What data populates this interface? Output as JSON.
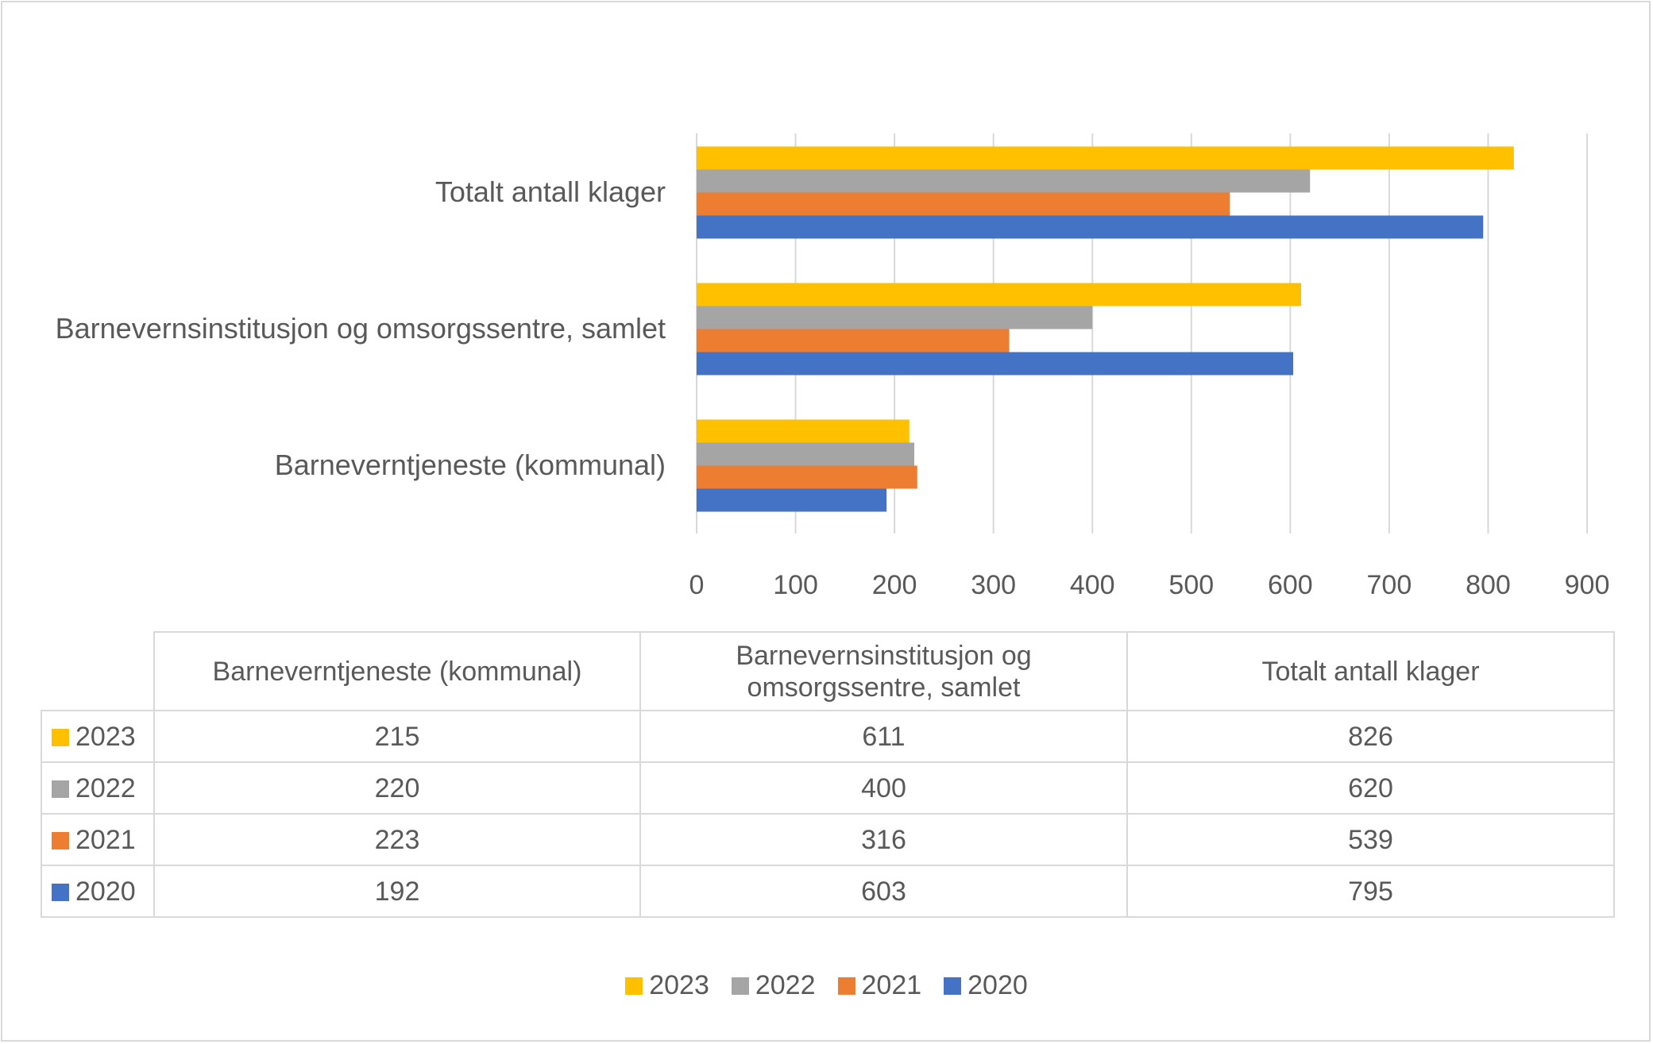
{
  "chart_data": {
    "type": "bar",
    "orientation": "horizontal",
    "categories": [
      "Barneverntjeneste (kommunal)",
      "Barnevernsinstitusjon og omsorgssentre, samlet",
      "Totalt antall klager"
    ],
    "table_headers": [
      "Barneverntjeneste (kommunal)",
      "Barnevernsinstitusjon og",
      "omsorgssentre, samlet",
      "Totalt antall klager"
    ],
    "series": [
      {
        "name": "2023",
        "color": "#FFC000",
        "values": [
          215,
          611,
          826
        ]
      },
      {
        "name": "2022",
        "color": "#A5A5A5",
        "values": [
          220,
          400,
          620
        ]
      },
      {
        "name": "2021",
        "color": "#ED7D31",
        "values": [
          223,
          316,
          539
        ]
      },
      {
        "name": "2020",
        "color": "#4472C4",
        "values": [
          192,
          603,
          795
        ]
      }
    ],
    "xlim": [
      0,
      900
    ],
    "xticks": [
      "0",
      "100",
      "200",
      "300",
      "400",
      "500",
      "600",
      "700",
      "800",
      "900"
    ],
    "grid": true,
    "legend": "bottom"
  }
}
